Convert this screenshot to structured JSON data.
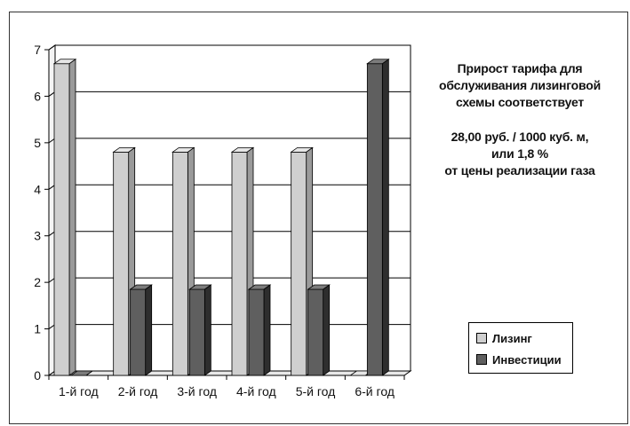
{
  "annotation": {
    "line1": "Прирост тарифа для",
    "line2": "обслуживания лизинговой",
    "line3": "схемы соответствует",
    "line4": "28,00 руб. / 1000 куб. м,",
    "line5": "или 1,8 %",
    "line6": "от цены реализации газа"
  },
  "colors": {
    "leasing": "#cfcfcf",
    "investments": "#5f5f5f",
    "grid": "#000000"
  },
  "chart_data": {
    "type": "bar",
    "title": "",
    "xlabel": "",
    "ylabel": "",
    "ylim": [
      0,
      7
    ],
    "yticks": [
      "0",
      "1",
      "2",
      "3",
      "4",
      "5",
      "6",
      "7"
    ],
    "grid": true,
    "legend_position": "right",
    "categories": [
      "1-й год",
      "2-й год",
      "3-й год",
      "4-й год",
      "5-й год",
      "6-й год"
    ],
    "series": [
      {
        "name": "Лизинг",
        "values": [
          6.7,
          4.8,
          4.8,
          4.8,
          4.8,
          0
        ]
      },
      {
        "name": "Инвестиции",
        "values": [
          0,
          1.85,
          1.85,
          1.85,
          1.85,
          6.7
        ]
      }
    ]
  }
}
